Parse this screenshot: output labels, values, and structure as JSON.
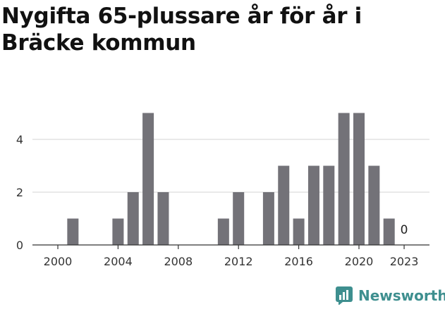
{
  "title": "Nygifta 65-plussare år för år i Bräcke kommun",
  "brand": {
    "name": "Newsworthy",
    "icon": "newsworthy-logo-icon",
    "color": "#3e8f8f"
  },
  "chart_data": {
    "type": "bar",
    "x": [
      2000,
      2001,
      2002,
      2003,
      2004,
      2005,
      2006,
      2007,
      2008,
      2009,
      2010,
      2011,
      2012,
      2013,
      2014,
      2015,
      2016,
      2017,
      2018,
      2019,
      2020,
      2021,
      2022,
      2023
    ],
    "values": [
      0,
      1,
      0,
      0,
      1,
      2,
      5,
      2,
      0,
      0,
      0,
      1,
      2,
      0,
      2,
      3,
      1,
      3,
      3,
      5,
      5,
      3,
      1,
      0
    ],
    "x_ticks": [
      "2000",
      "2004",
      "2008",
      "2012",
      "2016",
      "2020",
      "2023"
    ],
    "y_ticks": [
      "0",
      "2",
      "4"
    ],
    "ylim": [
      0,
      5
    ],
    "data_labels": [
      {
        "x": 2023,
        "text": "0"
      }
    ],
    "bar_color": "#737278",
    "grid": true,
    "xlabel": "",
    "ylabel": ""
  }
}
